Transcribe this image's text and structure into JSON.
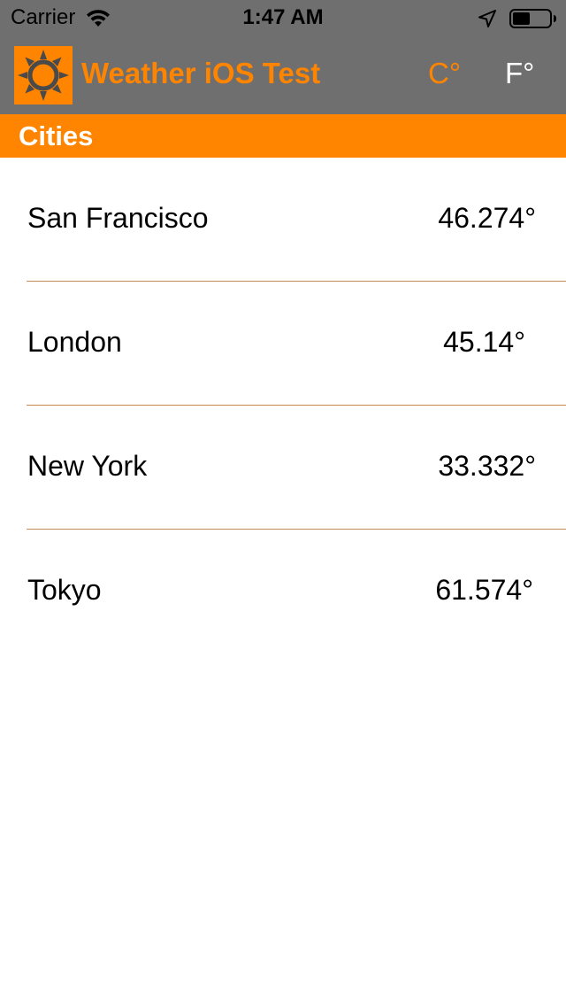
{
  "status_bar": {
    "carrier": "Carrier",
    "time": "1:47 AM",
    "icons": [
      "wifi-icon",
      "location-icon",
      "battery-icon"
    ]
  },
  "navbar": {
    "logo_icon": "sun-icon",
    "title": "Weather iOS Test",
    "unit_celsius": "C°",
    "unit_fahrenheit": "F°",
    "selected_unit": "celsius"
  },
  "section": {
    "title": "Cities"
  },
  "cities": [
    {
      "name": "San Francisco",
      "temp": "46.274°"
    },
    {
      "name": "London",
      "temp": "45.14°"
    },
    {
      "name": "New York",
      "temp": "33.332°"
    },
    {
      "name": "Tokyo",
      "temp": "61.574°"
    }
  ],
  "colors": {
    "accent": "#ff8400",
    "nav_background": "#6f6f6f",
    "divider": "#c78a55"
  }
}
